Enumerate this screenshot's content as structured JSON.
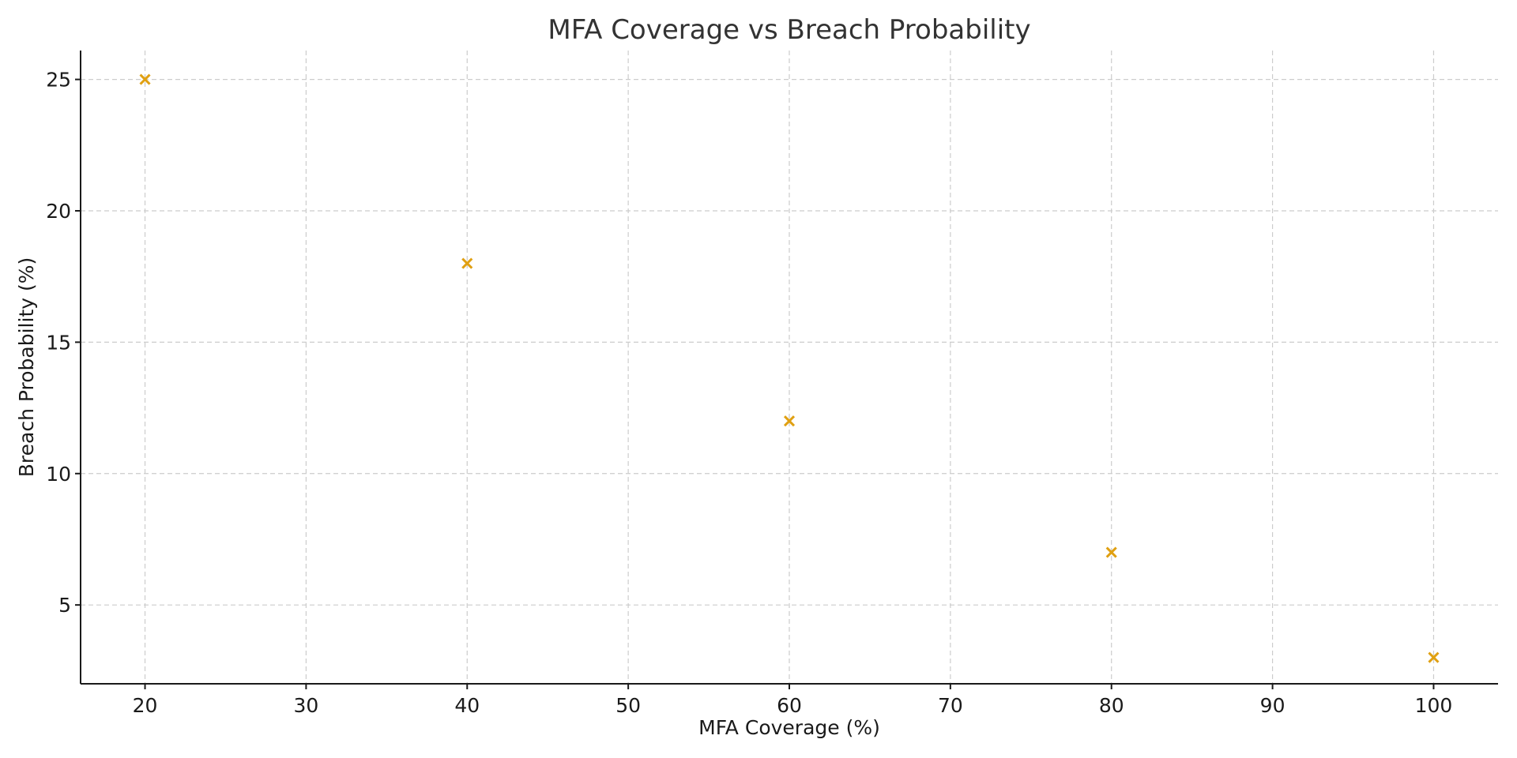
{
  "chart_data": {
    "type": "scatter",
    "title": "MFA Coverage vs Breach Probability",
    "xlabel": "MFA Coverage (%)",
    "ylabel": "Breach Probability (%)",
    "xlim": [
      16,
      104
    ],
    "ylim": [
      2,
      26.1
    ],
    "xticks": [
      20,
      30,
      40,
      50,
      60,
      70,
      80,
      90,
      100
    ],
    "yticks": [
      5,
      10,
      15,
      20,
      25
    ],
    "grid": true,
    "marker": "x",
    "color": "#E0A012",
    "points": [
      {
        "x": 20,
        "y": 25
      },
      {
        "x": 40,
        "y": 18
      },
      {
        "x": 60,
        "y": 12
      },
      {
        "x": 80,
        "y": 7
      },
      {
        "x": 100,
        "y": 3
      }
    ]
  }
}
